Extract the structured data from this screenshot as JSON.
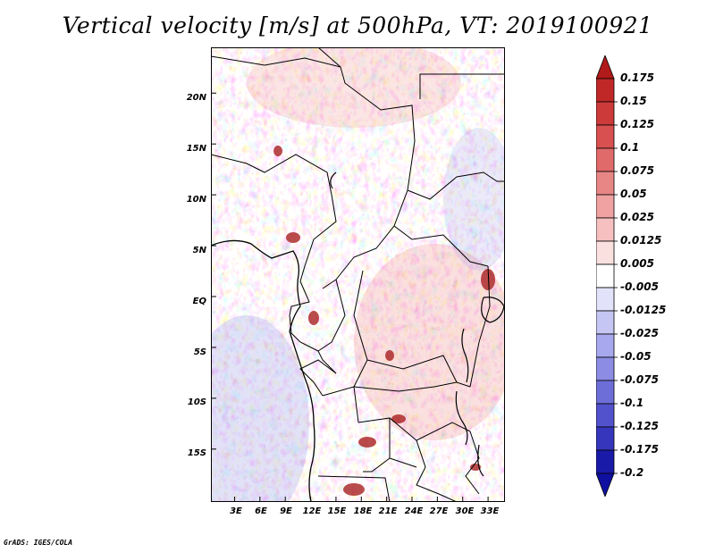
{
  "title": "Vertical velocity [m/s] at 500hPa, VT: 2019100921",
  "credit": "GrADS: IGES/COLA",
  "map": {
    "lat_labels": [
      "20N",
      "15N",
      "10N",
      "5N",
      "EQ",
      "5S",
      "10S",
      "15S"
    ],
    "lon_labels": [
      "3E",
      "6E",
      "9E",
      "12E",
      "15E",
      "18E",
      "21E",
      "24E",
      "27E",
      "30E",
      "33E"
    ],
    "lat_values": [
      20,
      15,
      10,
      5,
      0,
      -5,
      -10,
      -15
    ],
    "lon_values": [
      3,
      6,
      9,
      12,
      15,
      18,
      21,
      24,
      27,
      30,
      33
    ],
    "field": "vertical velocity",
    "units": "m/s",
    "level": "500hPa"
  },
  "colorbar": {
    "labels": [
      "0.175",
      "0.15",
      "0.125",
      "0.1",
      "0.075",
      "0.05",
      "0.025",
      "0.0125",
      "0.005",
      "-0.005",
      "-0.0125",
      "-0.025",
      "-0.05",
      "-0.075",
      "-0.1",
      "-0.125",
      "-0.175",
      "-0.2"
    ],
    "colors": [
      "#b11a1a",
      "#c02828",
      "#cc3a3a",
      "#d85050",
      "#e06a6a",
      "#e88686",
      "#f0a2a2",
      "#f6c0c0",
      "#fbe0e0",
      "#ffffff",
      "#e2e2fb",
      "#c6c6f4",
      "#a8a8ee",
      "#8c8ce4",
      "#6e6ed8",
      "#5252cc",
      "#3636bc",
      "#1a1aa8",
      "#1010a0"
    ]
  }
}
